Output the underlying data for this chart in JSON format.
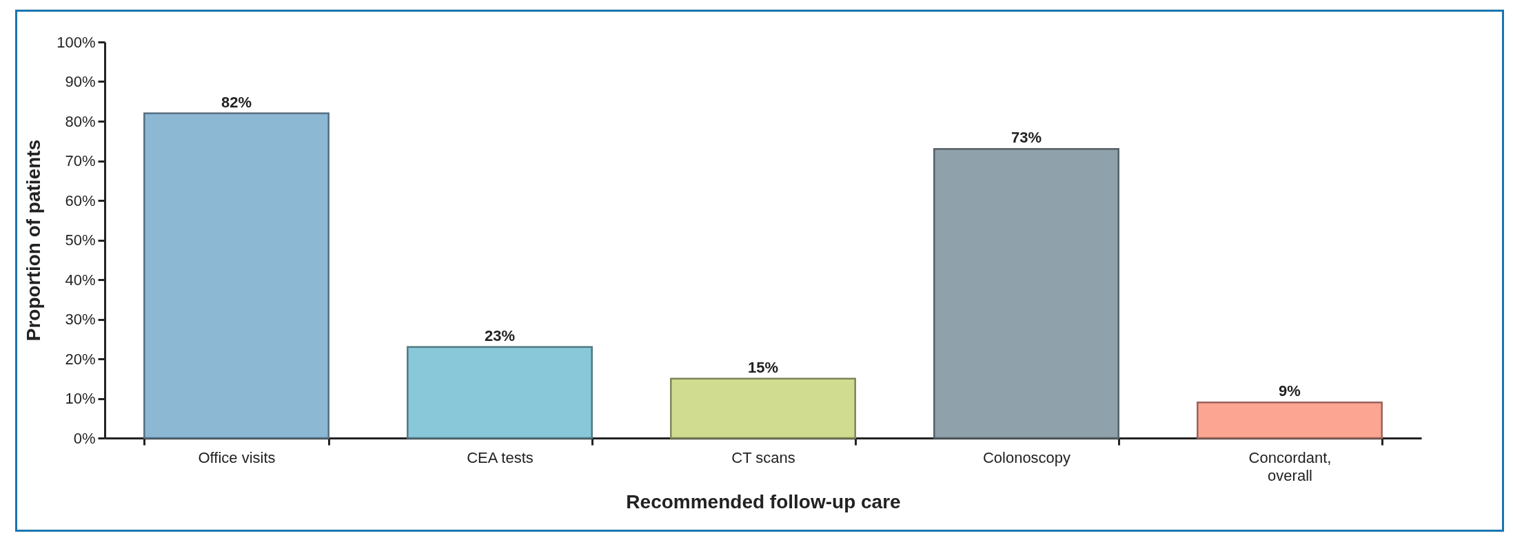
{
  "chart_data": {
    "type": "bar",
    "xlabel": "Recommended follow-up care",
    "ylabel": "Proportion of patients",
    "categories": [
      "Office visits",
      "CEA tests",
      "CT scans",
      "Colonoscopy",
      "Concordant,\noverall"
    ],
    "values": [
      82,
      23,
      15,
      73,
      9
    ],
    "colors": [
      "#8db8d4",
      "#88c8d8",
      "#d0dd90",
      "#8fa1aa",
      "#fda593"
    ],
    "value_labels": [
      "82%",
      "23%",
      "15%",
      "73%",
      "9%"
    ],
    "ylim": [
      0,
      100
    ],
    "yticks": [
      {
        "value": 0,
        "label": "0%"
      },
      {
        "value": 10,
        "label": "10%"
      },
      {
        "value": 20,
        "label": "20%"
      },
      {
        "value": 30,
        "label": "30%"
      },
      {
        "value": 40,
        "label": "40%"
      },
      {
        "value": 50,
        "label": "50%"
      },
      {
        "value": 60,
        "label": "60%"
      },
      {
        "value": 70,
        "label": "70%"
      },
      {
        "value": 80,
        "label": "80%"
      },
      {
        "value": 90,
        "label": "90%"
      },
      {
        "value": 100,
        "label": "100%"
      }
    ],
    "grid": false
  }
}
